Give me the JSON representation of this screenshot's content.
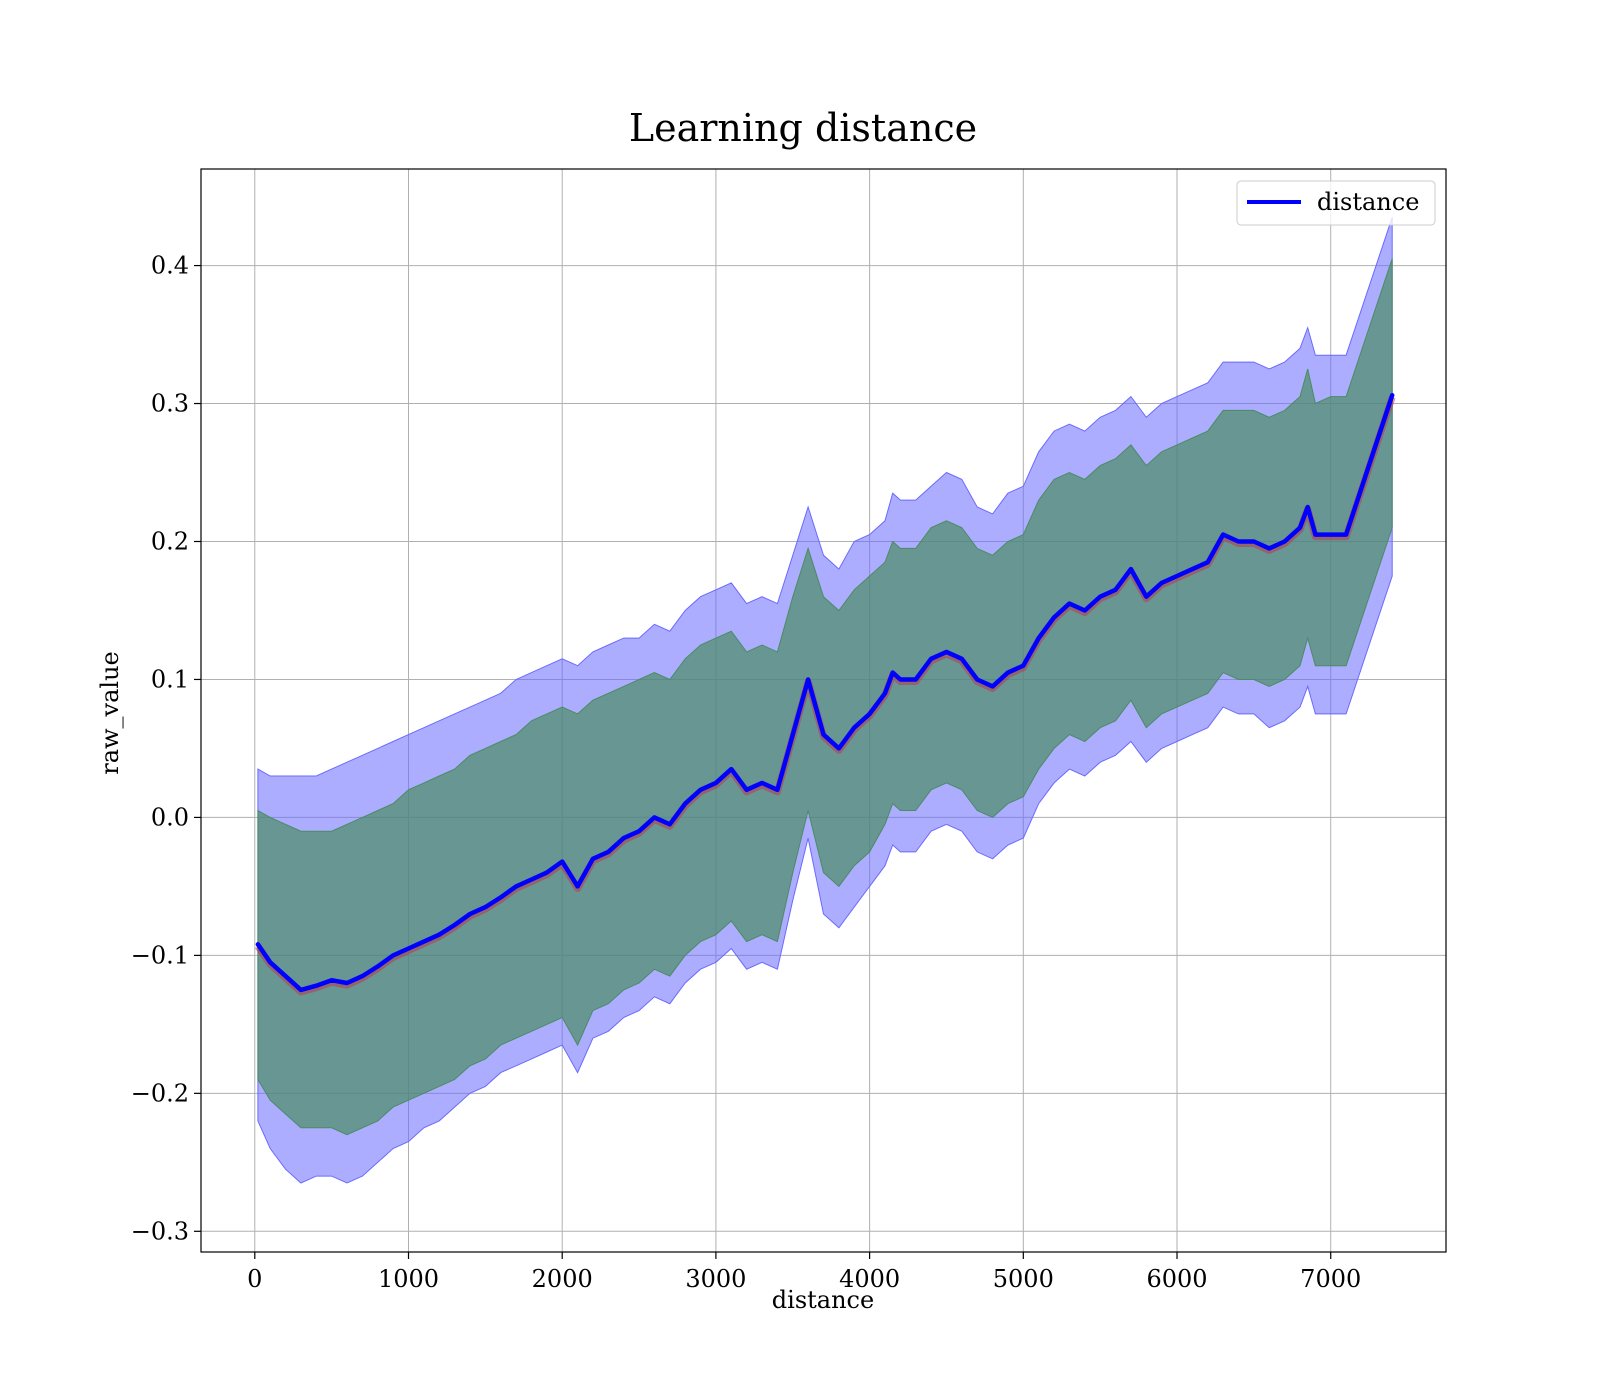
{
  "chart_data": {
    "type": "line",
    "title": "Learning distance",
    "xlabel": "distance",
    "ylabel": "raw_value",
    "xlim": [
      -350,
      7750
    ],
    "ylim": [
      -0.315,
      0.47
    ],
    "x_ticks": [
      0,
      1000,
      2000,
      3000,
      4000,
      5000,
      6000,
      7000
    ],
    "y_ticks": [
      -0.3,
      -0.2,
      -0.1,
      0.0,
      0.1,
      0.2,
      0.3,
      0.4
    ],
    "y_tick_labels": [
      "−0.3",
      "−0.2",
      "−0.1",
      "0.0",
      "0.1",
      "0.2",
      "0.3",
      "0.4"
    ],
    "grid": true,
    "legend_position": "top-right",
    "colors": {
      "line": "#0000ff",
      "outer_band": "#6a6aff",
      "inner_band": "#4a8c64",
      "line_shadow": "#c0304a"
    },
    "series": [
      {
        "name": "distance",
        "x": [
          20,
          100,
          200,
          300,
          400,
          500,
          600,
          700,
          800,
          900,
          1000,
          1100,
          1200,
          1300,
          1400,
          1500,
          1600,
          1700,
          1800,
          1900,
          2000,
          2100,
          2200,
          2300,
          2400,
          2500,
          2600,
          2700,
          2800,
          2900,
          3000,
          3100,
          3200,
          3300,
          3400,
          3500,
          3600,
          3700,
          3800,
          3900,
          4000,
          4100,
          4150,
          4200,
          4300,
          4400,
          4500,
          4600,
          4700,
          4800,
          4900,
          5000,
          5100,
          5200,
          5300,
          5400,
          5500,
          5600,
          5700,
          5800,
          5900,
          6000,
          6100,
          6200,
          6300,
          6400,
          6500,
          6600,
          6700,
          6800,
          6850,
          6900,
          7000,
          7100,
          7400
        ],
        "y": [
          -0.092,
          -0.105,
          -0.115,
          -0.125,
          -0.122,
          -0.118,
          -0.12,
          -0.115,
          -0.108,
          -0.1,
          -0.095,
          -0.09,
          -0.085,
          -0.078,
          -0.07,
          -0.065,
          -0.058,
          -0.05,
          -0.045,
          -0.04,
          -0.032,
          -0.05,
          -0.03,
          -0.025,
          -0.015,
          -0.01,
          0.0,
          -0.005,
          0.01,
          0.02,
          0.025,
          0.035,
          0.02,
          0.025,
          0.02,
          0.06,
          0.1,
          0.06,
          0.05,
          0.065,
          0.075,
          0.09,
          0.105,
          0.1,
          0.1,
          0.115,
          0.12,
          0.115,
          0.1,
          0.095,
          0.105,
          0.11,
          0.13,
          0.145,
          0.155,
          0.15,
          0.16,
          0.165,
          0.18,
          0.16,
          0.17,
          0.175,
          0.18,
          0.185,
          0.205,
          0.2,
          0.2,
          0.195,
          0.2,
          0.21,
          0.225,
          0.205,
          0.205,
          0.205,
          0.306
        ],
        "outer_band_upper": [
          0.035,
          0.03,
          0.03,
          0.03,
          0.03,
          0.035,
          0.04,
          0.045,
          0.05,
          0.055,
          0.06,
          0.065,
          0.07,
          0.075,
          0.08,
          0.085,
          0.09,
          0.1,
          0.105,
          0.11,
          0.115,
          0.11,
          0.12,
          0.125,
          0.13,
          0.13,
          0.14,
          0.135,
          0.15,
          0.16,
          0.165,
          0.17,
          0.155,
          0.16,
          0.155,
          0.19,
          0.225,
          0.19,
          0.18,
          0.2,
          0.205,
          0.215,
          0.235,
          0.23,
          0.23,
          0.24,
          0.25,
          0.245,
          0.225,
          0.22,
          0.235,
          0.24,
          0.265,
          0.28,
          0.285,
          0.28,
          0.29,
          0.295,
          0.305,
          0.29,
          0.3,
          0.305,
          0.31,
          0.315,
          0.33,
          0.33,
          0.33,
          0.325,
          0.33,
          0.34,
          0.355,
          0.335,
          0.335,
          0.335,
          0.435
        ],
        "inner_band_upper": [
          0.005,
          0.0,
          -0.005,
          -0.01,
          -0.01,
          -0.01,
          -0.005,
          0.0,
          0.005,
          0.01,
          0.02,
          0.025,
          0.03,
          0.035,
          0.045,
          0.05,
          0.055,
          0.06,
          0.07,
          0.075,
          0.08,
          0.075,
          0.085,
          0.09,
          0.095,
          0.1,
          0.105,
          0.1,
          0.115,
          0.125,
          0.13,
          0.135,
          0.12,
          0.125,
          0.12,
          0.16,
          0.195,
          0.16,
          0.15,
          0.165,
          0.175,
          0.185,
          0.2,
          0.195,
          0.195,
          0.21,
          0.215,
          0.21,
          0.195,
          0.19,
          0.2,
          0.205,
          0.23,
          0.245,
          0.25,
          0.245,
          0.255,
          0.26,
          0.27,
          0.255,
          0.265,
          0.27,
          0.275,
          0.28,
          0.295,
          0.295,
          0.295,
          0.29,
          0.295,
          0.305,
          0.325,
          0.3,
          0.305,
          0.305,
          0.405
        ],
        "inner_band_lower": [
          -0.19,
          -0.205,
          -0.215,
          -0.225,
          -0.225,
          -0.225,
          -0.23,
          -0.225,
          -0.22,
          -0.21,
          -0.205,
          -0.2,
          -0.195,
          -0.19,
          -0.18,
          -0.175,
          -0.165,
          -0.16,
          -0.155,
          -0.15,
          -0.145,
          -0.165,
          -0.14,
          -0.135,
          -0.125,
          -0.12,
          -0.11,
          -0.115,
          -0.1,
          -0.09,
          -0.085,
          -0.075,
          -0.09,
          -0.085,
          -0.09,
          -0.04,
          0.005,
          -0.04,
          -0.05,
          -0.035,
          -0.025,
          -0.005,
          0.01,
          0.005,
          0.005,
          0.02,
          0.025,
          0.02,
          0.005,
          0.0,
          0.01,
          0.015,
          0.035,
          0.05,
          0.06,
          0.055,
          0.065,
          0.07,
          0.085,
          0.065,
          0.075,
          0.08,
          0.085,
          0.09,
          0.105,
          0.1,
          0.1,
          0.095,
          0.1,
          0.11,
          0.13,
          0.11,
          0.11,
          0.11,
          0.21
        ],
        "outer_band_lower": [
          -0.22,
          -0.24,
          -0.255,
          -0.265,
          -0.26,
          -0.26,
          -0.265,
          -0.26,
          -0.25,
          -0.24,
          -0.235,
          -0.225,
          -0.22,
          -0.21,
          -0.2,
          -0.195,
          -0.185,
          -0.18,
          -0.175,
          -0.17,
          -0.165,
          -0.185,
          -0.16,
          -0.155,
          -0.145,
          -0.14,
          -0.13,
          -0.135,
          -0.12,
          -0.11,
          -0.105,
          -0.095,
          -0.11,
          -0.105,
          -0.11,
          -0.06,
          -0.015,
          -0.07,
          -0.08,
          -0.065,
          -0.05,
          -0.035,
          -0.02,
          -0.025,
          -0.025,
          -0.01,
          -0.005,
          -0.01,
          -0.025,
          -0.03,
          -0.02,
          -0.015,
          0.01,
          0.025,
          0.035,
          0.03,
          0.04,
          0.045,
          0.055,
          0.04,
          0.05,
          0.055,
          0.06,
          0.065,
          0.08,
          0.075,
          0.075,
          0.065,
          0.07,
          0.08,
          0.095,
          0.075,
          0.075,
          0.075,
          0.175
        ]
      }
    ]
  }
}
